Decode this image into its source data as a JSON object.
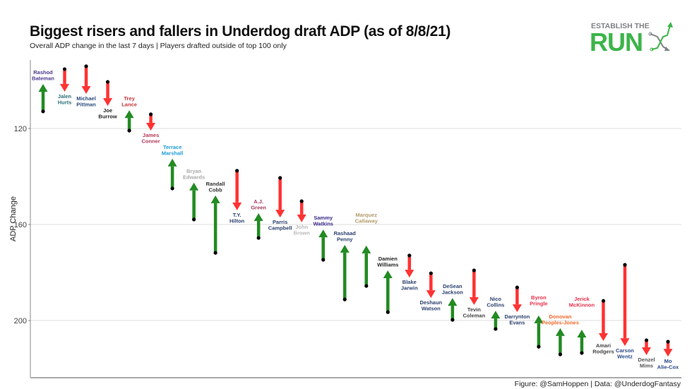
{
  "title": "Biggest risers and fallers in Underdog draft ADP (as of 8/8/21)",
  "subtitle": "Overall ADP change in the last 7 days | Players drafted outside of top 100 only",
  "caption": "Figure: @SamHoppen | Data: @UnderdogFantasy",
  "logo": {
    "line1": "ESTABLISH THE",
    "line2": "RUN",
    "color_green": "#3cb54a",
    "color_gray": "#808285"
  },
  "colors": {
    "riser": "#228b22",
    "faller": "#ff3333",
    "start_dot": "#000000",
    "grid": "#dddddd"
  },
  "chart_data": {
    "type": "arrow",
    "title": "Biggest risers and fallers in Underdog draft ADP (as of 8/8/21)",
    "xlabel": "",
    "ylabel": "ADP Change",
    "y_reversed": true,
    "ylim": [
      91.5,
      223.8
    ],
    "yticks": [
      120,
      160,
      200
    ],
    "grid": "horizontal",
    "players": [
      {
        "name": [
          "Rashod",
          "Bateman"
        ],
        "from": 112.9,
        "to": 101.5,
        "label_color": "#4b3a8f"
      },
      {
        "name": [
          "Jalen",
          "Hurts"
        ],
        "from": 95.3,
        "to": 104.7,
        "label_color": "#2a6f78"
      },
      {
        "name": [
          "Michael",
          "Pittman"
        ],
        "from": 94.1,
        "to": 105.6,
        "label_color": "#2c4a7a"
      },
      {
        "name": [
          "Joe",
          "Burrow"
        ],
        "from": 100.6,
        "to": 110.6,
        "label_color": "#222222"
      },
      {
        "name": [
          "Trey",
          "Lance"
        ],
        "from": 120.9,
        "to": 112.4,
        "label_color": "#c8343a"
      },
      {
        "name": [
          "James",
          "Conner"
        ],
        "from": 114.1,
        "to": 120.9,
        "label_color": "#b33a5a"
      },
      {
        "name": [
          "Terrace",
          "Marshall"
        ],
        "from": 145.0,
        "to": 132.6,
        "label_color": "#1e9bd7"
      },
      {
        "name": [
          "Bryan",
          "Edwards"
        ],
        "from": 157.9,
        "to": 142.6,
        "label_color": "#aaaaaa"
      },
      {
        "name": [
          "Randall",
          "Cobb"
        ],
        "from": 171.8,
        "to": 147.9,
        "label_color": "#333333"
      },
      {
        "name": [
          "T.Y.",
          "Hilton"
        ],
        "from": 137.6,
        "to": 154.1,
        "label_color": "#2b3f6e"
      },
      {
        "name": [
          "A.J.",
          "Green"
        ],
        "from": 165.6,
        "to": 155.3,
        "label_color": "#a33a5a"
      },
      {
        "name": [
          "Parris",
          "Campbell"
        ],
        "from": 140.6,
        "to": 157.1,
        "label_color": "#2b3f6e"
      },
      {
        "name": [
          "John",
          "Brown"
        ],
        "from": 150.3,
        "to": 159.1,
        "label_color": "#bbbbbb"
      },
      {
        "name": [
          "Sammy",
          "Watkins"
        ],
        "from": 174.7,
        "to": 162.1,
        "label_color": "#3a2a8a"
      },
      {
        "name": [
          "Rashaad",
          "Penny"
        ],
        "from": 191.2,
        "to": 168.5,
        "label_color": "#2b3f6e"
      },
      {
        "name": [
          "Marquez",
          "Callaway"
        ],
        "from": 185.6,
        "to": 168.8,
        "label_color": "#b39b6a"
      },
      {
        "name": [
          "Damien",
          "Williams"
        ],
        "from": 196.5,
        "to": 179.1,
        "label_color": "#222222"
      },
      {
        "name": [
          "Blake",
          "Jarwin"
        ],
        "from": 172.9,
        "to": 182.1,
        "label_color": "#2b3f6e"
      },
      {
        "name": [
          "Deshaun",
          "Watson"
        ],
        "from": 180.3,
        "to": 190.6,
        "label_color": "#2b3f6e"
      },
      {
        "name": [
          "DeSean",
          "Jackson"
        ],
        "from": 199.7,
        "to": 190.6,
        "label_color": "#2b3f6e"
      },
      {
        "name": [
          "Tevin",
          "Coleman"
        ],
        "from": 179.1,
        "to": 193.5,
        "label_color": "#444444"
      },
      {
        "name": [
          "Nico",
          "Collins"
        ],
        "from": 203.5,
        "to": 195.9,
        "label_color": "#2b3f6e"
      },
      {
        "name": [
          "Darrynton",
          "Evans"
        ],
        "from": 186.2,
        "to": 196.5,
        "label_color": "#2b3f6e"
      },
      {
        "name": [
          "Byron",
          "Pringle"
        ],
        "from": 210.9,
        "to": 197.9,
        "label_color": "#e8304a"
      },
      {
        "name": [
          "Donovan",
          "Peoples-Jones"
        ],
        "from": 214.1,
        "to": 203.2,
        "label_color": "#f26a2a"
      },
      {
        "name": [
          "Jerick",
          "McKinnon"
        ],
        "from": 213.5,
        "to": 203.8,
        "label_color": "#e8304a"
      },
      {
        "name": [
          "Amari",
          "Rodgers"
        ],
        "from": 191.8,
        "to": 208.5,
        "label_color": "#444444"
      },
      {
        "name": [
          "Carson",
          "Wentz"
        ],
        "from": 176.8,
        "to": 210.6,
        "label_color": "#2b4a8a"
      },
      {
        "name": [
          "Denzel",
          "Mims"
        ],
        "from": 208.2,
        "to": 214.4,
        "label_color": "#555555"
      },
      {
        "name": [
          "Mo",
          "Alie-Cox"
        ],
        "from": 208.8,
        "to": 215.0,
        "label_color": "#2b4a8a"
      }
    ]
  }
}
